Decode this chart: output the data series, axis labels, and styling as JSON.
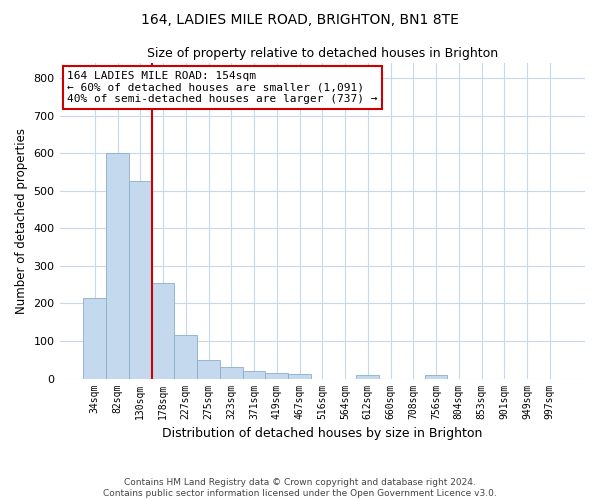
{
  "title1": "164, LADIES MILE ROAD, BRIGHTON, BN1 8TE",
  "title2": "Size of property relative to detached houses in Brighton",
  "xlabel": "Distribution of detached houses by size in Brighton",
  "ylabel": "Number of detached properties",
  "bar_labels": [
    "34sqm",
    "82sqm",
    "130sqm",
    "178sqm",
    "227sqm",
    "275sqm",
    "323sqm",
    "371sqm",
    "419sqm",
    "467sqm",
    "516sqm",
    "564sqm",
    "612sqm",
    "660sqm",
    "708sqm",
    "756sqm",
    "804sqm",
    "853sqm",
    "901sqm",
    "949sqm",
    "997sqm"
  ],
  "bar_values": [
    215,
    600,
    525,
    255,
    115,
    50,
    32,
    20,
    16,
    11,
    0,
    0,
    10,
    0,
    0,
    10,
    0,
    0,
    0,
    0,
    0
  ],
  "bar_color": "#c5d9ee",
  "bar_edgecolor": "#89aecb",
  "grid_color": "#c8d8ea",
  "bg_color": "#ffffff",
  "vline_x": 2.5,
  "vline_color": "#cc0000",
  "annotation_line1": "164 LADIES MILE ROAD: 154sqm",
  "annotation_line2": "← 60% of detached houses are smaller (1,091)",
  "annotation_line3": "40% of semi-detached houses are larger (737) →",
  "annotation_box_color": "#cc0000",
  "footnote": "Contains HM Land Registry data © Crown copyright and database right 2024.\nContains public sector information licensed under the Open Government Licence v3.0.",
  "ylim": [
    0,
    840
  ],
  "yticks": [
    0,
    100,
    200,
    300,
    400,
    500,
    600,
    700,
    800
  ]
}
